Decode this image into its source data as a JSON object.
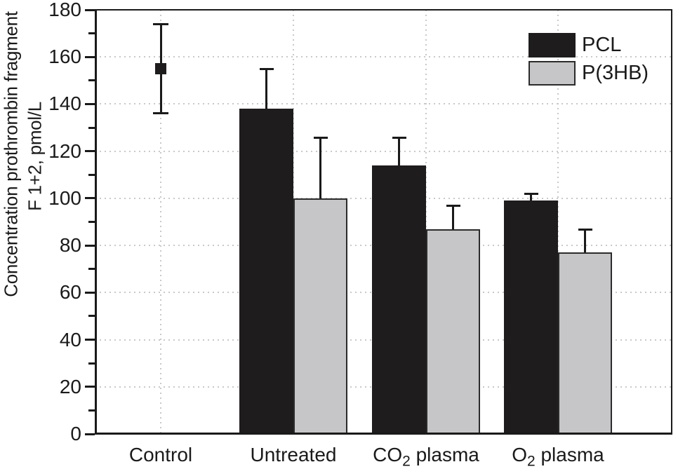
{
  "colors": {
    "axis": "#1a1a1a",
    "grid": "#c9c9c9",
    "text": "#1a1a1a",
    "background": "#ffffff",
    "bar_black": "#1e1c1d",
    "bar_gray": "#c6c6c8",
    "bar_gray_border": "#2b2b2b"
  },
  "chart_data": {
    "type": "bar",
    "title": "",
    "ylabel_line1": "Concentration prothrombin fragment",
    "ylabel_line2": "F 1+2, pmol/L",
    "xlabel": "",
    "ylim": [
      0,
      180
    ],
    "yticks": [
      0,
      20,
      40,
      60,
      80,
      100,
      120,
      140,
      160,
      180
    ],
    "grid": {
      "horizontal_dotted": true,
      "vertical_dotted_at_categories": true
    },
    "categories": [
      {
        "pre": "Control",
        "sub": "",
        "post": ""
      },
      {
        "pre": "Untreated",
        "sub": "",
        "post": ""
      },
      {
        "pre": "CO",
        "sub": "2",
        "post": " plasma"
      },
      {
        "pre": "O",
        "sub": "2",
        "post": " plasma"
      }
    ],
    "series": [
      {
        "name": "PCL",
        "color": "#1e1c1d",
        "border": "#1e1c1d",
        "values": [
          null,
          138,
          114,
          99
        ],
        "errors_plus": [
          null,
          17,
          12,
          3
        ]
      },
      {
        "name": "P(3HB)",
        "color": "#c6c6c8",
        "border": "#2b2b2b",
        "values": [
          null,
          100,
          87,
          77
        ],
        "errors_plus": [
          null,
          26,
          10,
          10
        ]
      }
    ],
    "control_point": {
      "category": "Control",
      "category_index": 0,
      "value": 155,
      "error_plus": 19,
      "error_minus": 19,
      "marker": "filled-square",
      "color": "#1e1c1d"
    },
    "legend": {
      "position": "top-right",
      "entries": [
        {
          "label": "PCL",
          "color": "#1e1c1d",
          "border": "#1e1c1d"
        },
        {
          "label": "P(3HB)",
          "color": "#c6c6c8",
          "border": "#2b2b2b"
        }
      ]
    }
  }
}
